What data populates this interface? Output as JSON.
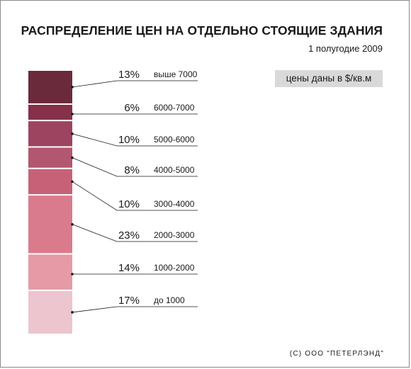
{
  "title": "РАСПРЕДЕЛЕНИЕ ЦЕН НА ОТДЕЛЬНО СТОЯЩИЕ ЗДАНИЯ",
  "subtitle": "1 полугодие 2009",
  "units_note": "цены даны в $/кв.м",
  "copyright": "(С) ООО \"ПЕТЕРЛЭНД\"",
  "chart_data": {
    "type": "bar",
    "stacked": true,
    "title": "РАСПРЕДЕЛЕНИЕ ЦЕН НА ОТДЕЛЬНО СТОЯЩИЕ ЗДАНИЯ",
    "xlabel": "",
    "ylabel": "",
    "unit": "%",
    "segments": [
      {
        "range": "выше 7000",
        "value": 13,
        "label": "13%",
        "color": "#6b2a3c"
      },
      {
        "range": "6000-7000",
        "value": 6,
        "label": "6%",
        "color": "#86304a"
      },
      {
        "range": "5000-6000",
        "value": 10,
        "label": "10%",
        "color": "#9d4461"
      },
      {
        "range": "4000-5000",
        "value": 8,
        "label": "8%",
        "color": "#b25770"
      },
      {
        "range": "3000-4000",
        "value": 10,
        "label": "10%",
        "color": "#c76178"
      },
      {
        "range": "2000-3000",
        "value": 23,
        "label": "23%",
        "color": "#d97b8c"
      },
      {
        "range": "1000-2000",
        "value": 14,
        "label": "14%",
        "color": "#e69aa6"
      },
      {
        "range": "до 1000",
        "value": 17,
        "label": "17%",
        "color": "#ecc5ce"
      }
    ]
  }
}
